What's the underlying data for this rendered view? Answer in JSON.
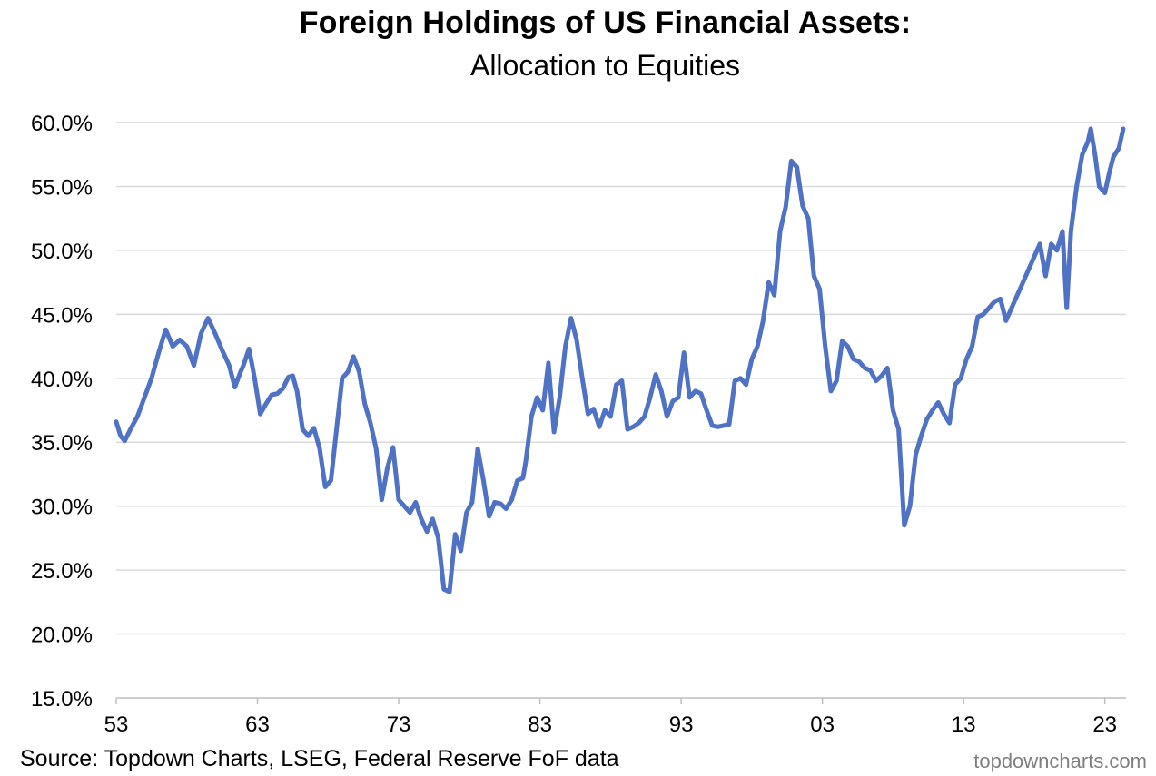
{
  "chart_data": {
    "type": "line",
    "title": "Foreign Holdings of US Financial Assets:",
    "subtitle": "Allocation to Equities",
    "xlabel": "",
    "ylabel": "",
    "x_range": [
      1953,
      2024.5
    ],
    "ylim": [
      15,
      60
    ],
    "y_ticks": [
      15,
      20,
      25,
      30,
      35,
      40,
      45,
      50,
      55,
      60
    ],
    "y_tick_labels": [
      "15.0%",
      "20.0%",
      "25.0%",
      "30.0%",
      "35.0%",
      "40.0%",
      "45.0%",
      "50.0%",
      "55.0%",
      "60.0%"
    ],
    "x_ticks": [
      1953,
      1963,
      1973,
      1983,
      1993,
      2003,
      2013,
      2023
    ],
    "x_tick_labels": [
      "53",
      "63",
      "73",
      "83",
      "93",
      "03",
      "13",
      "23"
    ],
    "grid": "horizontal",
    "legend": "none",
    "line_color": "#4f72c4",
    "gridline_color": "#d9d9d9",
    "series": [
      {
        "x": [
          1953.0,
          1953.3,
          1953.6,
          1954.0,
          1954.5,
          1955.0,
          1955.5,
          1956.0,
          1956.5,
          1957.0,
          1957.5,
          1958.0,
          1958.5,
          1959.0,
          1959.5,
          1960.0,
          1960.5,
          1961.0,
          1961.4,
          1961.8,
          1962.0,
          1962.4,
          1962.8,
          1963.2,
          1963.6,
          1964.0,
          1964.4,
          1964.8,
          1965.2,
          1965.5,
          1965.8,
          1966.2,
          1966.6,
          1967.0,
          1967.4,
          1967.8,
          1968.2,
          1968.6,
          1969.0,
          1969.4,
          1969.8,
          1970.2,
          1970.6,
          1971.0,
          1971.4,
          1971.8,
          1972.2,
          1972.6,
          1973.0,
          1973.4,
          1973.8,
          1974.2,
          1974.6,
          1975.0,
          1975.4,
          1975.8,
          1976.2,
          1976.6,
          1977.0,
          1977.4,
          1977.8,
          1978.2,
          1978.6,
          1979.0,
          1979.4,
          1979.8,
          1980.2,
          1980.6,
          1981.0,
          1981.4,
          1981.8,
          1982.0,
          1982.4,
          1982.8,
          1983.2,
          1983.6,
          1984.0,
          1984.4,
          1984.8,
          1985.2,
          1985.6,
          1986.0,
          1986.4,
          1986.8,
          1987.2,
          1987.6,
          1988.0,
          1988.4,
          1988.8,
          1989.2,
          1989.6,
          1990.0,
          1990.4,
          1990.8,
          1991.2,
          1991.6,
          1992.0,
          1992.4,
          1992.8,
          1993.2,
          1993.6,
          1994.0,
          1994.4,
          1994.8,
          1995.2,
          1995.6,
          1996.0,
          1996.4,
          1996.8,
          1997.2,
          1997.6,
          1998.0,
          1998.4,
          1998.8,
          1999.2,
          1999.6,
          2000.0,
          2000.4,
          2000.8,
          2001.2,
          2001.6,
          2002.0,
          2002.4,
          2002.8,
          2003.2,
          2003.6,
          2004.0,
          2004.4,
          2004.8,
          2005.2,
          2005.6,
          2006.0,
          2006.4,
          2006.8,
          2007.2,
          2007.6,
          2008.0,
          2008.4,
          2008.8,
          2009.2,
          2009.6,
          2010.0,
          2010.4,
          2010.8,
          2011.2,
          2011.6,
          2012.0,
          2012.4,
          2012.8,
          2013.2,
          2013.6,
          2014.0,
          2014.4,
          2014.8,
          2015.2,
          2015.6,
          2016.0,
          2016.4,
          2016.8,
          2017.2,
          2017.6,
          2018.0,
          2018.4,
          2018.8,
          2019.2,
          2019.6,
          2020.0,
          2020.3,
          2020.6,
          2021.0,
          2021.4,
          2021.8,
          2022.0,
          2022.3,
          2022.6,
          2023.0,
          2023.3,
          2023.6,
          2024.0,
          2024.3
        ],
        "values": [
          36.6,
          35.5,
          35.1,
          36.0,
          37.0,
          38.5,
          40.0,
          42.0,
          43.8,
          42.5,
          43.0,
          42.5,
          41.0,
          43.5,
          44.7,
          43.5,
          42.2,
          41.0,
          39.3,
          40.5,
          41.0,
          42.3,
          40.0,
          37.2,
          38.0,
          38.7,
          38.8,
          39.2,
          40.1,
          40.2,
          39.0,
          36.0,
          35.5,
          36.1,
          34.5,
          31.5,
          32.0,
          36.0,
          40.0,
          40.5,
          41.7,
          40.5,
          38.0,
          36.5,
          34.5,
          30.5,
          33.0,
          34.6,
          30.5,
          30.0,
          29.5,
          30.3,
          29.0,
          28.0,
          29.0,
          27.5,
          23.5,
          23.3,
          27.8,
          26.5,
          29.5,
          30.3,
          34.5,
          32.0,
          29.2,
          30.3,
          30.2,
          29.8,
          30.5,
          32.0,
          32.2,
          33.5,
          37.0,
          38.5,
          37.5,
          41.2,
          35.8,
          38.5,
          42.5,
          44.7,
          43.0,
          40.0,
          37.2,
          37.6,
          36.2,
          37.5,
          37.0,
          39.5,
          39.8,
          36.0,
          36.2,
          36.5,
          37.0,
          38.5,
          40.3,
          39.0,
          37.0,
          38.2,
          38.5,
          42.0,
          38.5,
          39.0,
          38.8,
          37.5,
          36.3,
          36.2,
          36.3,
          36.4,
          39.8,
          40.0,
          39.5,
          41.5,
          42.5,
          44.5,
          47.5,
          46.5,
          51.5,
          53.4,
          57.0,
          56.5,
          53.5,
          52.5,
          48.0,
          47.0,
          42.5,
          39.0,
          39.8,
          42.9,
          42.5,
          41.5,
          41.3,
          40.8,
          40.6,
          39.8,
          40.2,
          40.8,
          37.5,
          36.0,
          28.5,
          30.0,
          34.0,
          35.5,
          36.8,
          37.5,
          38.1,
          37.2,
          36.5,
          39.5,
          40.0,
          41.5,
          42.5,
          44.8,
          45.0,
          45.5,
          46.0,
          46.2,
          44.5,
          45.5,
          46.5,
          47.5,
          48.5,
          49.5,
          50.5,
          48.0,
          50.5,
          50.0,
          51.5,
          45.5,
          51.5,
          55.0,
          57.5,
          58.5,
          59.5,
          57.5,
          55.0,
          54.5,
          56.0,
          57.3,
          58.0,
          59.5
        ]
      }
    ]
  },
  "footer": {
    "source": "Source: Topdown Charts, LSEG, Federal Reserve FoF data",
    "brand": "topdowncharts.com"
  }
}
